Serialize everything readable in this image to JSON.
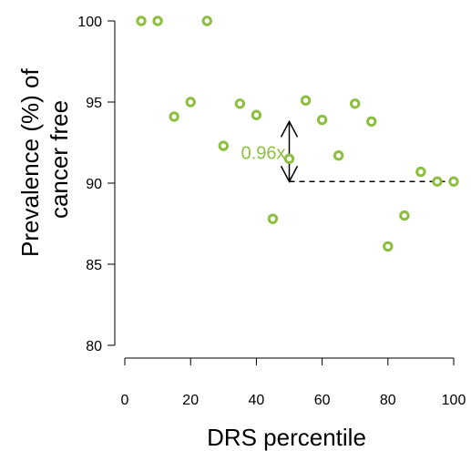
{
  "chart_data": {
    "type": "scatter",
    "xlabel": "DRS percentile",
    "ylabel_lines": [
      "Prevalence (%) of",
      "cancer free"
    ],
    "xlim": [
      0,
      100
    ],
    "ylim": [
      80,
      100
    ],
    "x_ticks": [
      0,
      20,
      40,
      60,
      80,
      100
    ],
    "x_tick_labels": [
      "0",
      "20",
      "40",
      "60",
      "80",
      "100"
    ],
    "y_ticks": [
      80,
      85,
      90,
      95,
      100
    ],
    "y_tick_labels": [
      "80",
      "85",
      "90",
      "95",
      "100"
    ],
    "grid": false,
    "marker_color": "#8cbf3f",
    "series": [
      {
        "x": [
          5,
          10,
          15,
          20,
          25,
          30,
          35,
          40,
          45,
          50,
          55,
          60,
          65,
          70,
          75,
          80,
          85,
          90,
          95,
          100
        ],
        "y": [
          100,
          100,
          94.1,
          95.0,
          100,
          92.3,
          94.9,
          94.2,
          87.8,
          91.5,
          95.1,
          93.9,
          91.7,
          94.9,
          93.8,
          86.1,
          88.0,
          90.7,
          90.1,
          90.1
        ]
      }
    ],
    "annotations": {
      "fold_change_label": "0.96x",
      "fold_change_color": "#8cbf3f",
      "arrow_x": 50,
      "arrow_y_range": [
        90.1,
        93.8
      ],
      "reference_line": {
        "y": 90.1,
        "x_range": [
          50,
          100
        ],
        "style": "dashed"
      }
    }
  }
}
